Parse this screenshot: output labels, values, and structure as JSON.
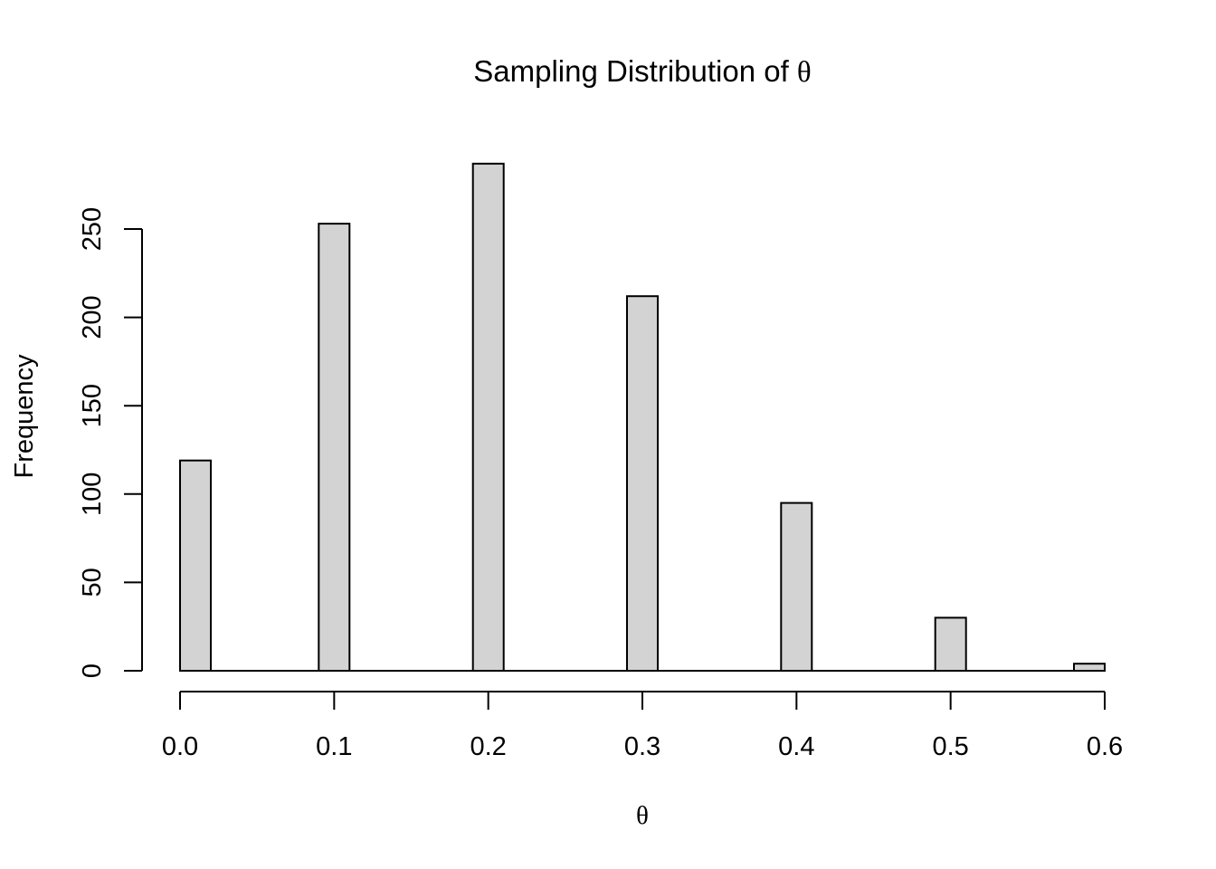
{
  "chart_data": {
    "type": "bar",
    "title": "Sampling Distribution of",
    "title_symbol": "θ",
    "xlabel": "θ",
    "ylabel": "Frequency",
    "x": [
      0.0,
      0.1,
      0.2,
      0.3,
      0.4,
      0.5,
      0.6
    ],
    "values": [
      119,
      253,
      287,
      212,
      95,
      30,
      4
    ],
    "xlim": [
      0.0,
      0.6
    ],
    "ylim": [
      0,
      300
    ],
    "x_ticks": [
      "0.0",
      "0.1",
      "0.2",
      "0.3",
      "0.4",
      "0.5",
      "0.6"
    ],
    "y_ticks": [
      "0",
      "50",
      "100",
      "150",
      "200",
      "250"
    ],
    "bar_color": "#d3d3d3",
    "edge_color": "#000000",
    "grid": false,
    "legend": "none"
  }
}
